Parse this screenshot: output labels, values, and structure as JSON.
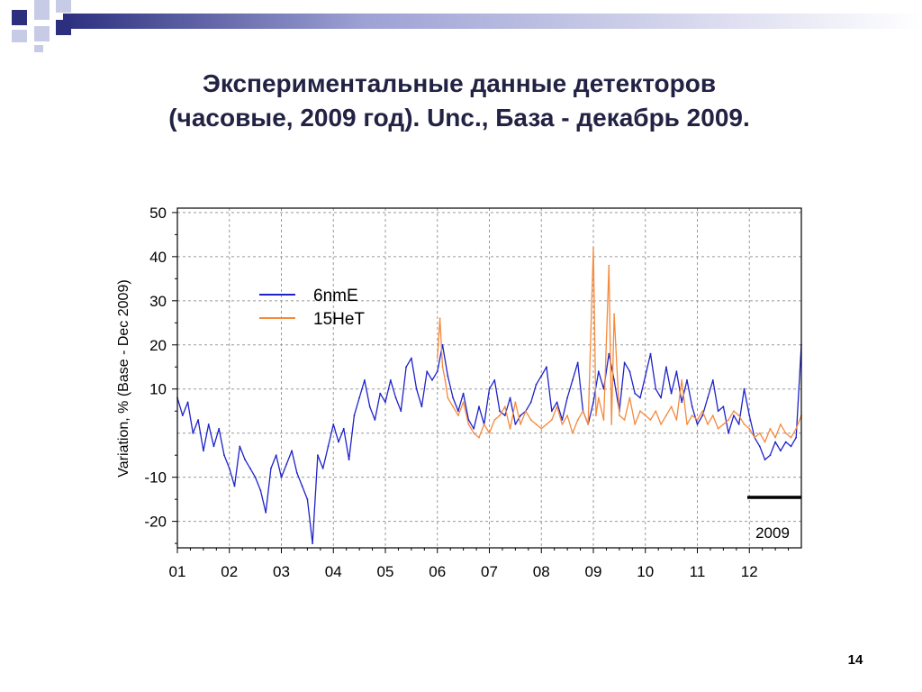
{
  "slide": {
    "title_line1": "Экспериментальные данные детекторов",
    "title_line2": "(часовые, 2009 год). Unc., База - декабрь 2009.",
    "page_number": "14",
    "colors": {
      "title": "#222244",
      "decor_light": "#c8cbe6",
      "decor_dark": "#2b2f7e"
    }
  },
  "chart_data": {
    "type": "line",
    "title": "",
    "xlabel": "",
    "ylabel": "Variation, %   (Base - Dec 2009)",
    "ylim": [
      -26,
      51
    ],
    "xlim": [
      1,
      13
    ],
    "x_tick_labels": [
      "01",
      "02",
      "03",
      "04",
      "05",
      "06",
      "07",
      "08",
      "09",
      "10",
      "11",
      "12"
    ],
    "y_ticks": [
      50,
      40,
      30,
      20,
      10,
      -10,
      -20
    ],
    "y_tick_labels": [
      "50",
      "40",
      "30",
      "20",
      "10",
      "-10",
      "-20"
    ],
    "grid": true,
    "legend_position": "top-left",
    "annotation": "2009",
    "series": [
      {
        "name": "6nmE",
        "color": "#1e22c8",
        "x": [
          1.0,
          1.1,
          1.2,
          1.3,
          1.4,
          1.5,
          1.6,
          1.7,
          1.8,
          1.9,
          2.0,
          2.1,
          2.2,
          2.3,
          2.4,
          2.5,
          2.6,
          2.7,
          2.8,
          2.9,
          3.0,
          3.1,
          3.2,
          3.3,
          3.4,
          3.5,
          3.6,
          3.7,
          3.8,
          3.9,
          4.0,
          4.1,
          4.2,
          4.3,
          4.4,
          4.5,
          4.6,
          4.7,
          4.8,
          4.9,
          5.0,
          5.1,
          5.2,
          5.3,
          5.4,
          5.5,
          5.6,
          5.7,
          5.8,
          5.9,
          6.0,
          6.1,
          6.2,
          6.3,
          6.4,
          6.5,
          6.6,
          6.7,
          6.8,
          6.9,
          7.0,
          7.1,
          7.2,
          7.3,
          7.4,
          7.5,
          7.6,
          7.7,
          7.8,
          7.9,
          8.0,
          8.1,
          8.2,
          8.3,
          8.4,
          8.5,
          8.6,
          8.7,
          8.8,
          8.9,
          9.0,
          9.1,
          9.2,
          9.3,
          9.4,
          9.5,
          9.6,
          9.7,
          9.8,
          9.9,
          10.0,
          10.1,
          10.2,
          10.3,
          10.4,
          10.5,
          10.6,
          10.7,
          10.8,
          10.9,
          11.0,
          11.1,
          11.2,
          11.3,
          11.4,
          11.5,
          11.6,
          11.7,
          11.8,
          11.9,
          12.0,
          12.1,
          12.2,
          12.3,
          12.4,
          12.5,
          12.6,
          12.7,
          12.8,
          12.9,
          13.0
        ],
        "values": [
          8,
          4,
          7,
          0,
          3,
          -4,
          2,
          -3,
          1,
          -5,
          -8,
          -12,
          -3,
          -6,
          -8,
          -10,
          -13,
          -18,
          -8,
          -5,
          -10,
          -7,
          -4,
          -9,
          -12,
          -15,
          -25,
          -5,
          -8,
          -3,
          2,
          -2,
          1,
          -6,
          4,
          8,
          12,
          6,
          3,
          9,
          7,
          12,
          8,
          5,
          15,
          17,
          10,
          6,
          14,
          12,
          14,
          20,
          13,
          8,
          5,
          9,
          3,
          1,
          6,
          2,
          10,
          12,
          5,
          4,
          8,
          2,
          4,
          5,
          7,
          11,
          13,
          15,
          5,
          7,
          3,
          8,
          12,
          16,
          5,
          2,
          7,
          14,
          10,
          18,
          12,
          5,
          16,
          14,
          9,
          8,
          13,
          18,
          10,
          8,
          15,
          9,
          14,
          7,
          12,
          6,
          2,
          4,
          8,
          12,
          5,
          6,
          0,
          4,
          2,
          10,
          4,
          -1,
          -3,
          -6,
          -5,
          -2,
          -4,
          -2,
          -3,
          -1,
          20
        ]
      },
      {
        "name": "15HeT",
        "color": "#f58a3c",
        "x": [
          6.0,
          6.05,
          6.1,
          6.15,
          6.2,
          6.3,
          6.4,
          6.5,
          6.6,
          6.7,
          6.8,
          6.9,
          7.0,
          7.1,
          7.2,
          7.3,
          7.4,
          7.5,
          7.6,
          7.7,
          7.8,
          7.9,
          8.0,
          8.1,
          8.2,
          8.3,
          8.4,
          8.5,
          8.6,
          8.7,
          8.8,
          8.9,
          9.0,
          9.05,
          9.1,
          9.2,
          9.3,
          9.35,
          9.4,
          9.5,
          9.6,
          9.7,
          9.8,
          9.9,
          10.0,
          10.1,
          10.2,
          10.3,
          10.4,
          10.5,
          10.6,
          10.7,
          10.8,
          10.9,
          11.0,
          11.1,
          11.2,
          11.3,
          11.4,
          11.5,
          11.6,
          11.7,
          11.8,
          11.9,
          12.0,
          12.1,
          12.2,
          12.3,
          12.4,
          12.5,
          12.6,
          12.7,
          12.8,
          12.9,
          13.0
        ],
        "values": [
          17,
          26,
          15,
          12,
          8,
          6,
          4,
          7,
          2,
          0,
          -1,
          2,
          0,
          3,
          4,
          6,
          1,
          7,
          2,
          5,
          3,
          2,
          1,
          2,
          3,
          6,
          2,
          4,
          0,
          3,
          5,
          2,
          42,
          4,
          8,
          3,
          38,
          2,
          27,
          4,
          3,
          8,
          2,
          5,
          4,
          3,
          5,
          2,
          4,
          6,
          3,
          12,
          2,
          4,
          3,
          5,
          2,
          4,
          1,
          2,
          3,
          5,
          4,
          2,
          1,
          -1,
          0,
          -2,
          1,
          -1,
          2,
          0,
          -1,
          1,
          4
        ]
      }
    ]
  }
}
